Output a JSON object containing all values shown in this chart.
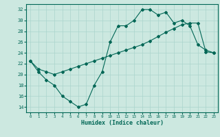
{
  "xlabel": "Humidex (Indice chaleur)",
  "background_color": "#cce8e0",
  "grid_color": "#aad4cc",
  "line_color": "#006655",
  "xlim": [
    -0.5,
    23.5
  ],
  "ylim": [
    13,
    33
  ],
  "xticks": [
    0,
    1,
    2,
    3,
    4,
    5,
    6,
    7,
    8,
    9,
    10,
    11,
    12,
    13,
    14,
    15,
    16,
    17,
    18,
    19,
    20,
    21,
    22,
    23
  ],
  "yticks": [
    14,
    16,
    18,
    20,
    22,
    24,
    26,
    28,
    30,
    32
  ],
  "line1_x": [
    0,
    1,
    2,
    3,
    4,
    5,
    6,
    7,
    8,
    9,
    10,
    11,
    12,
    13,
    14,
    15,
    16,
    17,
    18,
    19,
    20,
    21,
    22,
    23
  ],
  "line1_y": [
    22.5,
    20.5,
    19.0,
    18.0,
    16.0,
    15.0,
    14.0,
    14.5,
    18.0,
    20.5,
    26.0,
    29.0,
    29.0,
    30.0,
    32.0,
    32.0,
    31.0,
    31.5,
    29.5,
    30.0,
    29.0,
    25.5,
    24.5,
    24.0
  ],
  "line2_x": [
    0,
    1,
    2,
    3,
    4,
    5,
    6,
    7,
    8,
    9,
    10,
    11,
    12,
    13,
    14,
    15,
    16,
    17,
    18,
    19,
    20,
    21,
    22,
    23
  ],
  "line2_y": [
    22.5,
    21.0,
    20.5,
    20.0,
    20.5,
    21.0,
    21.5,
    22.0,
    22.5,
    23.0,
    23.5,
    24.0,
    24.5,
    25.0,
    25.5,
    26.2,
    27.0,
    27.8,
    28.5,
    29.2,
    29.5,
    29.5,
    24.2,
    24.0
  ]
}
